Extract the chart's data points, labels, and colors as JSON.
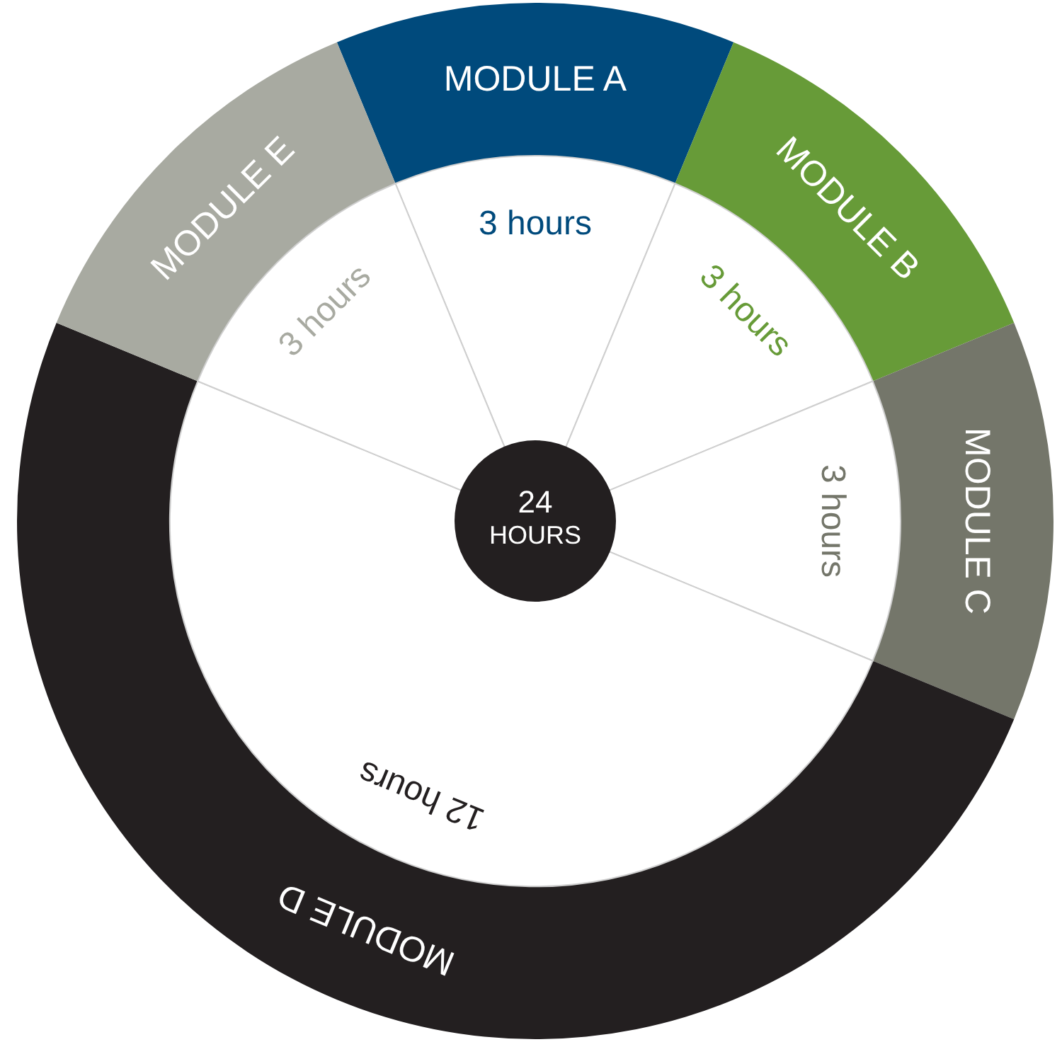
{
  "chart_data": {
    "type": "donut",
    "title": "24 HOURS",
    "categories": [
      "MODULE A",
      "MODULE B",
      "MODULE C",
      "MODULE D",
      "MODULE E"
    ],
    "values": [
      3,
      3,
      3,
      12,
      3
    ],
    "value_labels": [
      "3 hours",
      "3 hours",
      "3 hours",
      "12 hours",
      "3 hours"
    ],
    "colors": [
      "#004a7c",
      "#679b38",
      "#74766a",
      "#231f20",
      "#a8aaa1"
    ]
  }
}
